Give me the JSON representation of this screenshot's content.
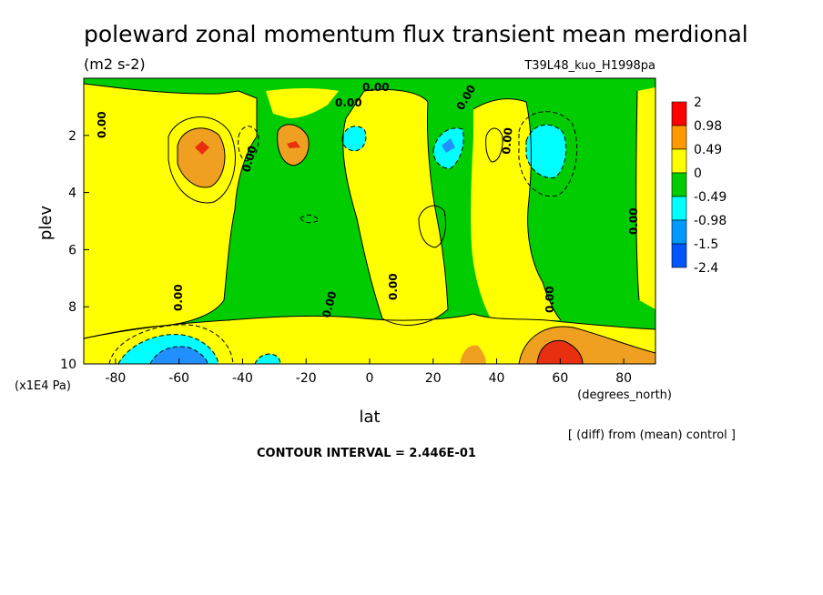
{
  "chart_data": {
    "type": "heatmap",
    "title": "poleward zonal momentum flux transient mean merdional",
    "units": "(m2 s-2)",
    "run_label": "T39L48_kuo_H1998pa",
    "xlabel": "lat",
    "xunits": "(degrees_north)",
    "ylabel": "plev",
    "yunits": "(x1E4 Pa)",
    "xlim": [
      -90,
      90
    ],
    "ylim": [
      10,
      0
    ],
    "x_ticks": [
      -80,
      -60,
      -40,
      -20,
      0,
      20,
      40,
      60,
      80
    ],
    "x_tick_labels": [
      "-80",
      "-60",
      "-40",
      "-20",
      "0",
      "20",
      "40",
      "60",
      "80"
    ],
    "y_ticks": [
      2,
      4,
      6,
      8,
      10
    ],
    "y_tick_labels": [
      "2",
      "4",
      "6",
      "8",
      "10"
    ],
    "contour_interval": "CONTOUR INTERVAL = 2.446E-01",
    "diff_note": "[ (diff) from (mean) control ]",
    "contour_labels": [
      "0.00"
    ],
    "legend": {
      "labels": [
        "2",
        "0.98",
        "0.49",
        "0",
        "-0.49",
        "-0.98",
        "-1.5",
        "-2.4"
      ],
      "colors": [
        "#ff0000",
        "#ff9900",
        "#ffff00",
        "#00cc00",
        "#00ffff",
        "#0099ff",
        "#0055ff"
      ]
    },
    "fill_colors": {
      "pos_low": "#ffff00",
      "pos_mid": "#f0a020",
      "pos_high": "#e83010",
      "neg_low": "#00cc00",
      "neg_mid": "#00ffff",
      "neg_high": "#2090ff"
    },
    "features": [
      {
        "lat": -53,
        "plev": 2.5,
        "value": 1.2
      },
      {
        "lat": -23,
        "plev": 2.5,
        "value": 1.1
      },
      {
        "lat": -5,
        "plev": 2.0,
        "value": -0.6
      },
      {
        "lat": 23,
        "plev": 2.5,
        "value": -0.8
      },
      {
        "lat": 52,
        "plev": 2.8,
        "value": -0.7
      },
      {
        "lat": -60,
        "plev": 9.8,
        "value": -1.6
      },
      {
        "lat": 55,
        "plev": 9.6,
        "value": 2.0
      }
    ]
  }
}
